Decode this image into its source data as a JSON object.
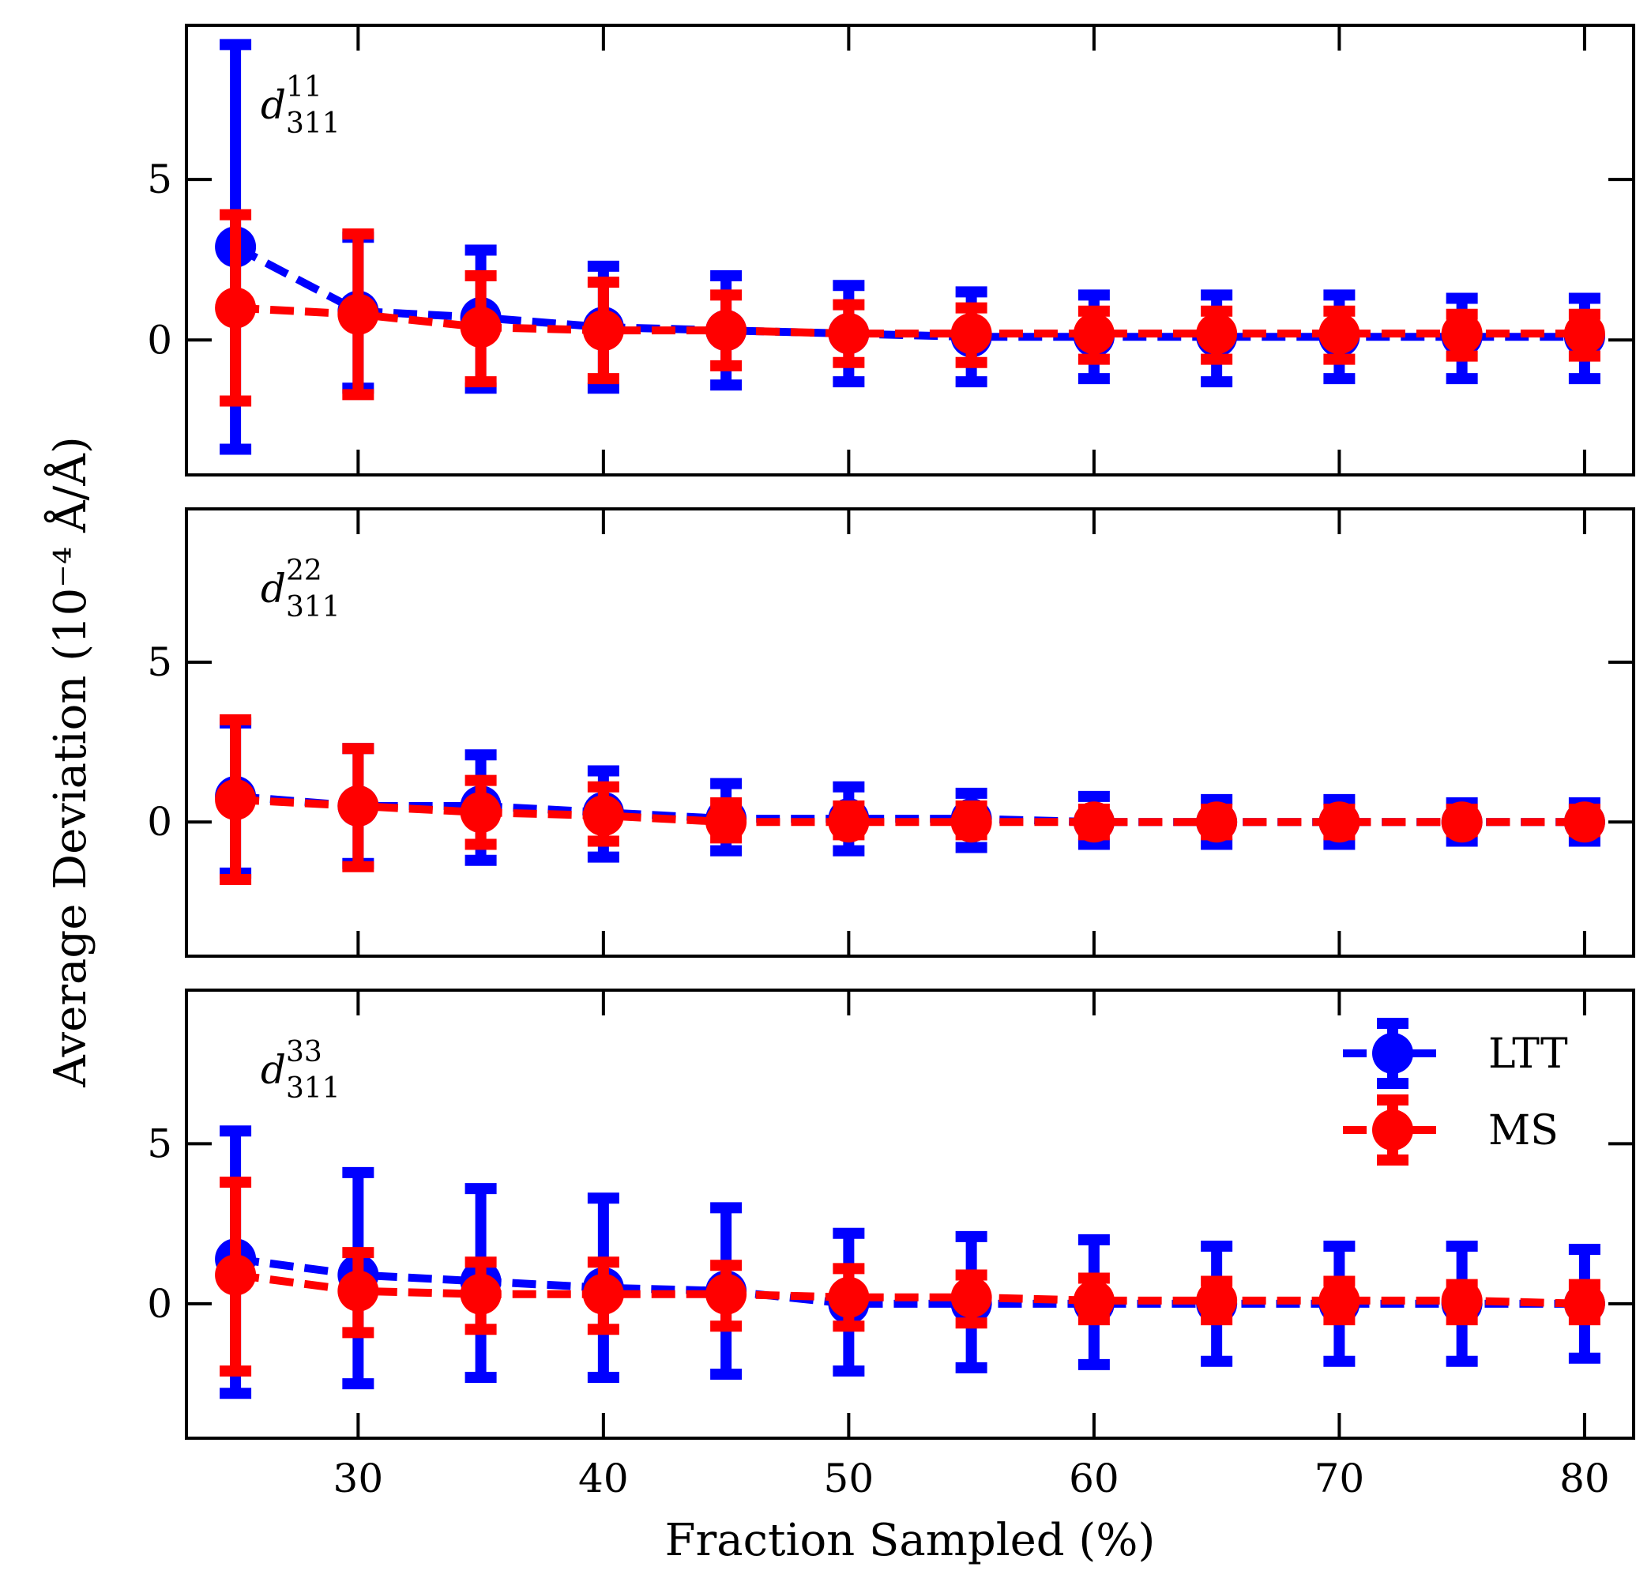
{
  "chart_data": {
    "type": "line",
    "xlabel": "Fraction Sampled (%)",
    "ylabel": "Average Deviation (10⁻⁴ Å/Å)",
    "xlim": [
      23,
      82
    ],
    "ylim": [
      -4.2,
      9.8
    ],
    "x": [
      25,
      30,
      35,
      40,
      45,
      50,
      55,
      60,
      65,
      70,
      75,
      80
    ],
    "xticks": [
      30,
      40,
      50,
      60,
      70,
      80
    ],
    "xtick_labels": [
      "30",
      "40",
      "50",
      "60",
      "70",
      "80"
    ],
    "yticks": [
      0,
      5
    ],
    "ytick_labels": [
      "0",
      "5"
    ],
    "line_style": "dashed",
    "marker": "circle",
    "error_bars": true,
    "legend": {
      "position": "upper-right-of-bottom-panel",
      "entries": [
        {
          "label": "LTT",
          "color": "#0000ff"
        },
        {
          "label": "MS",
          "color": "#ff0000"
        }
      ]
    },
    "panels": [
      {
        "label_main": "d",
        "label_sub": "311",
        "label_sup": "11",
        "series": [
          {
            "name": "LTT",
            "color": "#0000ff",
            "values": [
              2.9,
              0.9,
              0.7,
              0.4,
              0.3,
              0.2,
              0.1,
              0.1,
              0.1,
              0.1,
              0.1,
              0.1
            ],
            "err_low": [
              -3.4,
              -1.5,
              -1.5,
              -1.5,
              -1.4,
              -1.3,
              -1.3,
              -1.2,
              -1.3,
              -1.2,
              -1.2,
              -1.2
            ],
            "err_high": [
              9.2,
              3.2,
              2.8,
              2.3,
              2.0,
              1.7,
              1.5,
              1.4,
              1.4,
              1.4,
              1.3,
              1.3
            ]
          },
          {
            "name": "MS",
            "color": "#ff0000",
            "values": [
              1.0,
              0.8,
              0.4,
              0.3,
              0.3,
              0.2,
              0.2,
              0.2,
              0.2,
              0.2,
              0.2,
              0.2
            ],
            "err_low": [
              -1.9,
              -1.7,
              -1.3,
              -1.2,
              -0.8,
              -0.7,
              -0.7,
              -0.6,
              -0.6,
              -0.6,
              -0.5,
              -0.5
            ],
            "err_high": [
              3.9,
              3.3,
              2.0,
              1.8,
              1.4,
              1.1,
              1.0,
              0.9,
              0.9,
              0.9,
              0.8,
              0.8
            ]
          }
        ]
      },
      {
        "label_main": "d",
        "label_sub": "311",
        "label_sup": "22",
        "series": [
          {
            "name": "LTT",
            "color": "#0000ff",
            "values": [
              0.8,
              0.5,
              0.5,
              0.3,
              0.1,
              0.1,
              0.1,
              0.0,
              0.0,
              0.0,
              0.0,
              0.0
            ],
            "err_low": [
              -1.6,
              -1.3,
              -1.2,
              -1.1,
              -0.9,
              -0.9,
              -0.8,
              -0.7,
              -0.7,
              -0.7,
              -0.6,
              -0.6
            ],
            "err_high": [
              3.1,
              2.3,
              2.1,
              1.6,
              1.2,
              1.1,
              0.9,
              0.8,
              0.7,
              0.7,
              0.6,
              0.6
            ]
          },
          {
            "name": "MS",
            "color": "#ff0000",
            "values": [
              0.7,
              0.5,
              0.3,
              0.2,
              0.0,
              0.0,
              0.0,
              0.0,
              0.0,
              0.0,
              0.0,
              0.0
            ],
            "err_low": [
              -1.8,
              -1.4,
              -0.7,
              -0.6,
              -0.5,
              -0.4,
              -0.4,
              -0.4,
              -0.4,
              -0.4,
              -0.3,
              -0.3
            ],
            "err_high": [
              3.2,
              2.3,
              1.3,
              1.1,
              0.6,
              0.5,
              0.5,
              0.4,
              0.4,
              0.4,
              0.4,
              0.4
            ]
          }
        ]
      },
      {
        "label_main": "d",
        "label_sub": "311",
        "label_sup": "33",
        "series": [
          {
            "name": "LTT",
            "color": "#0000ff",
            "values": [
              1.4,
              0.9,
              0.7,
              0.5,
              0.4,
              0.0,
              0.0,
              0.0,
              0.0,
              0.0,
              0.0,
              0.0
            ],
            "err_low": [
              -2.8,
              -2.5,
              -2.3,
              -2.3,
              -2.2,
              -2.1,
              -2.0,
              -1.9,
              -1.8,
              -1.8,
              -1.8,
              -1.7
            ],
            "err_high": [
              5.4,
              4.1,
              3.6,
              3.3,
              3.0,
              2.2,
              2.1,
              2.0,
              1.8,
              1.8,
              1.8,
              1.7
            ]
          },
          {
            "name": "MS",
            "color": "#ff0000",
            "values": [
              0.9,
              0.4,
              0.3,
              0.3,
              0.3,
              0.2,
              0.2,
              0.1,
              0.1,
              0.1,
              0.1,
              0.0
            ],
            "err_low": [
              -2.1,
              -0.9,
              -0.8,
              -0.8,
              -0.7,
              -0.7,
              -0.6,
              -0.5,
              -0.5,
              -0.5,
              -0.5,
              -0.5
            ],
            "err_high": [
              3.8,
              1.6,
              1.3,
              1.3,
              1.2,
              1.1,
              0.9,
              0.8,
              0.7,
              0.7,
              0.6,
              0.6
            ]
          }
        ]
      }
    ]
  }
}
